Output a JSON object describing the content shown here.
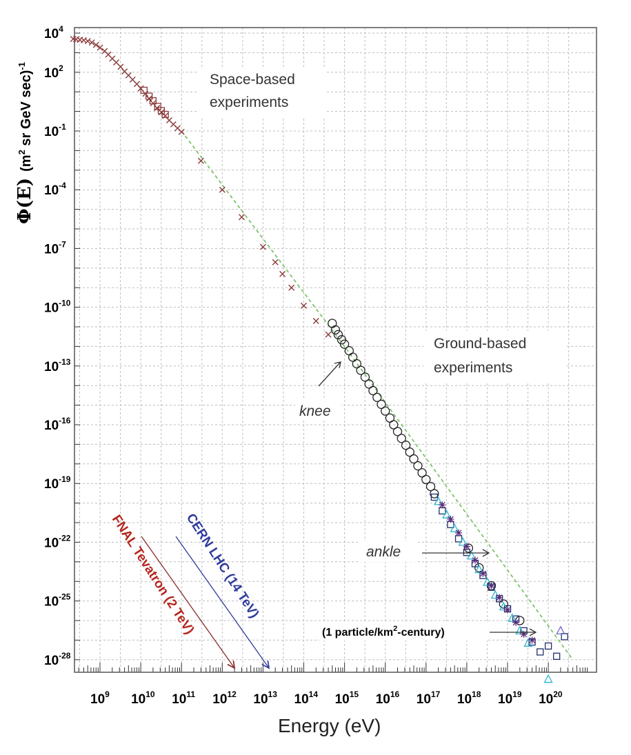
{
  "chart_data": {
    "type": "scatter",
    "title": "",
    "xlabel": "Energy (eV)",
    "ylabel": {
      "symbol": "Φ(E)",
      "units": "(m",
      "units_sup": "2",
      "units_rest": " sr GeV sec)",
      "units_exp": "-1"
    },
    "x_scale": "log",
    "y_scale": "log",
    "xlim": [
      100000000,
      500000000000000000000
    ],
    "ylim": [
      1e-29,
      10000
    ],
    "x_ticks": [
      {
        "value": 1000000000.0,
        "base": "10",
        "exp": "9"
      },
      {
        "value": 10000000000.0,
        "base": "10",
        "exp": "10"
      },
      {
        "value": 100000000000.0,
        "base": "10",
        "exp": "11"
      },
      {
        "value": 1000000000000.0,
        "base": "10",
        "exp": "12"
      },
      {
        "value": 10000000000000.0,
        "base": "10",
        "exp": "13"
      },
      {
        "value": 100000000000000.0,
        "base": "10",
        "exp": "14"
      },
      {
        "value": 1000000000000000.0,
        "base": "10",
        "exp": "15"
      },
      {
        "value": 1e+16,
        "base": "10",
        "exp": "16"
      },
      {
        "value": 1e+17,
        "base": "10",
        "exp": "17"
      },
      {
        "value": 1e+18,
        "base": "10",
        "exp": "18"
      },
      {
        "value": 1e+19,
        "base": "10",
        "exp": "19"
      },
      {
        "value": 1e+20,
        "base": "10",
        "exp": "20"
      }
    ],
    "y_ticks": [
      {
        "value": 10000.0,
        "base": "10",
        "exp": "4"
      },
      {
        "value": 100.0,
        "base": "10",
        "exp": "2"
      },
      {
        "value": 0.1,
        "base": "10",
        "exp": "-1"
      },
      {
        "value": 0.0001,
        "base": "10",
        "exp": "-4"
      },
      {
        "value": 1e-07,
        "base": "10",
        "exp": "-7"
      },
      {
        "value": 1e-10,
        "base": "10",
        "exp": "-10"
      },
      {
        "value": 1e-13,
        "base": "10",
        "exp": "-13"
      },
      {
        "value": 1e-16,
        "base": "10",
        "exp": "-16"
      },
      {
        "value": 1e-19,
        "base": "10",
        "exp": "-19"
      },
      {
        "value": 1e-22,
        "base": "10",
        "exp": "-22"
      },
      {
        "value": 1e-25,
        "base": "10",
        "exp": "-25"
      },
      {
        "value": 1e-28,
        "base": "10",
        "exp": "-28"
      }
    ],
    "grid": true,
    "reference_line": {
      "style": "dashed",
      "color": "#7cc46a",
      "points": [
        [
          100000000000.0,
          0.1
        ],
        [
          1000000000000000.0,
          1e-12
        ],
        [
          4e+20,
          1e-28
        ]
      ]
    },
    "series": [
      {
        "marker": "cross",
        "color": "#8b3a3a",
        "points": [
          [
            220000000.0,
            5000
          ],
          [
            260000000.0,
            4800
          ],
          [
            320000000.0,
            4600
          ],
          [
            400000000.0,
            4300
          ],
          [
            500000000.0,
            3900
          ],
          [
            630000000.0,
            3300
          ],
          [
            800000000.0,
            2500
          ],
          [
            1000000000.0,
            1800
          ],
          [
            1300000000.0,
            1200
          ],
          [
            1600000000.0,
            800
          ],
          [
            2000000000.0,
            500
          ],
          [
            2500000000.0,
            320
          ],
          [
            3200000000.0,
            190
          ],
          [
            4000000000.0,
            110
          ],
          [
            5000000000.0,
            70
          ],
          [
            6300000000.0,
            42
          ],
          [
            8000000000.0,
            25
          ],
          [
            10000000000.0,
            15
          ],
          [
            13000000000.0,
            8
          ],
          [
            16000000000.0,
            4.5
          ],
          [
            20000000000.0,
            2.6
          ],
          [
            25000000000.0,
            1.5
          ],
          [
            32000000000.0,
            0.9
          ],
          [
            40000000000.0,
            0.6
          ],
          [
            50000000000.0,
            0.35
          ],
          [
            63000000000.0,
            0.22
          ],
          [
            80000000000.0,
            0.14
          ],
          [
            100000000000.0,
            0.09
          ],
          [
            300000000000.0,
            0.003
          ],
          [
            1000000000000.0,
            0.0001
          ],
          [
            3000000000000.0,
            4e-06
          ],
          [
            10000000000000.0,
            1.2e-07
          ],
          [
            20000000000000.0,
            2e-08
          ],
          [
            30000000000000.0,
            5e-09
          ],
          [
            50000000000000.0,
            1e-09
          ],
          [
            100000000000000.0,
            1.2e-10
          ],
          [
            200000000000000.0,
            2e-11
          ],
          [
            400000000000000.0,
            4e-12
          ]
        ]
      },
      {
        "marker": "square",
        "color": "#8b3a3a",
        "points": [
          [
            12000000000.0,
            12
          ],
          [
            16000000000.0,
            6
          ],
          [
            20000000000.0,
            3.5
          ],
          [
            26000000000.0,
            1.8
          ],
          [
            32000000000.0,
            1.1
          ],
          [
            40000000000.0,
            0.7
          ]
        ]
      },
      {
        "marker": "circle",
        "color": "#222222",
        "points": [
          [
            500000000000000.0,
            1.5e-11
          ],
          [
            600000000000000.0,
            7e-12
          ],
          [
            700000000000000.0,
            4e-12
          ],
          [
            850000000000000.0,
            2.2e-12
          ],
          [
            1000000000000000.0,
            1.3e-12
          ],
          [
            1300000000000000.0,
            6e-13
          ],
          [
            1600000000000000.0,
            2.8e-13
          ],
          [
            2000000000000000.0,
            1.3e-13
          ],
          [
            2500000000000000.0,
            6e-14
          ],
          [
            3200000000000000.0,
            2.7e-14
          ],
          [
            4000000000000000.0,
            1.2e-14
          ],
          [
            5000000000000000.0,
            5.5e-15
          ],
          [
            6300000000000000.0,
            2.5e-15
          ],
          [
            8000000000000000.0,
            1.1e-15
          ],
          [
            1e+16,
            5e-16
          ],
          [
            1.3e+16,
            2.2e-16
          ],
          [
            1.6e+16,
            1e-16
          ],
          [
            2e+16,
            4.5e-17
          ],
          [
            2.5e+16,
            2e-17
          ],
          [
            3.2e+16,
            9e-18
          ],
          [
            4e+16,
            4e-18
          ],
          [
            5e+16,
            1.8e-18
          ],
          [
            6.3e+16,
            8e-19
          ],
          [
            8e+16,
            3.5e-19
          ],
          [
            1e+17,
            1.6e-19
          ],
          [
            1.3e+17,
            7e-20
          ],
          [
            1.6e+17,
            3e-20
          ],
          [
            1.1e+18,
            5e-23
          ],
          [
            2e+18,
            5e-24
          ],
          [
            4e+18,
            6e-25
          ],
          [
            8e+18,
            7e-26
          ],
          [
            2e+19,
            1e-26
          ]
        ]
      },
      {
        "marker": "square",
        "color": "#1f2f6b",
        "points": [
          [
            1.6e+17,
            2e-20
          ],
          [
            2.5e+17,
            4e-21
          ],
          [
            4e+17,
            8e-22
          ],
          [
            6.3e+17,
            1.5e-22
          ],
          [
            1e+18,
            3e-23
          ],
          [
            1.6e+18,
            8e-24
          ],
          [
            2.5e+18,
            2e-24
          ],
          [
            4e+18,
            5e-25
          ],
          [
            6.3e+18,
            1.3e-25
          ],
          [
            1e+19,
            4e-26
          ],
          [
            1.6e+19,
            1.2e-26
          ],
          [
            2.5e+19,
            3e-27
          ],
          [
            4e+19,
            8e-28
          ],
          [
            6.3e+19,
            2.5e-28
          ],
          [
            1e+20,
            5e-28
          ],
          [
            1.6e+20,
            1.5e-28
          ],
          [
            2.5e+20,
            1.5e-27
          ]
        ]
      },
      {
        "marker": "triangle",
        "color": "#2bb5d1",
        "points": [
          [
            2e+17,
            1.2e-20
          ],
          [
            3.2e+17,
            2.5e-21
          ],
          [
            5e+17,
            5e-22
          ],
          [
            8e+17,
            1e-22
          ],
          [
            1.3e+18,
            2e-23
          ],
          [
            2e+18,
            4e-24
          ],
          [
            3.2e+18,
            9e-25
          ],
          [
            5e+18,
            2e-25
          ],
          [
            8e+18,
            5e-26
          ],
          [
            1.3e+19,
            1.3e-26
          ],
          [
            2e+19,
            3e-27
          ],
          [
            3.2e+19,
            7e-28
          ],
          [
            1e+20,
            1e-29
          ]
        ]
      },
      {
        "marker": "star",
        "color": "#5a2a7a",
        "points": [
          [
            2.5e+17,
            8e-21
          ],
          [
            4e+17,
            1.5e-21
          ],
          [
            6.3e+17,
            3e-22
          ],
          [
            1e+18,
            6e-23
          ],
          [
            1.6e+18,
            1.2e-23
          ],
          [
            2.5e+18,
            2.5e-24
          ],
          [
            4e+18,
            6e-25
          ],
          [
            6.3e+18,
            1.5e-25
          ],
          [
            1e+19,
            3.5e-26
          ],
          [
            1.6e+19,
            8e-27
          ],
          [
            2.5e+19,
            2e-27
          ],
          [
            4e+19,
            1e-27
          ]
        ]
      },
      {
        "marker": "triangle",
        "color": "#6a6acc",
        "points": [
          [
            2e+20,
            3e-27
          ]
        ]
      }
    ],
    "annotations": {
      "space": [
        "Space-based",
        "experiments"
      ],
      "ground": [
        "Ground-based",
        "experiments"
      ],
      "knee": "knee",
      "ankle": "ankle",
      "tevatron": "FNAL Tevatron (2 TeV)",
      "lhc": "CERN LHC (14 TeV)",
      "rate_prefix": "(1 particle/km",
      "rate_sup": "2",
      "rate_suffix": "-century)"
    },
    "accelerators": [
      {
        "key": "tevatron",
        "energy": 2000000000000.0,
        "color": "#8b2a2a"
      },
      {
        "key": "lhc",
        "energy": 14000000000000.0,
        "color": "#2e3a9c"
      }
    ]
  }
}
